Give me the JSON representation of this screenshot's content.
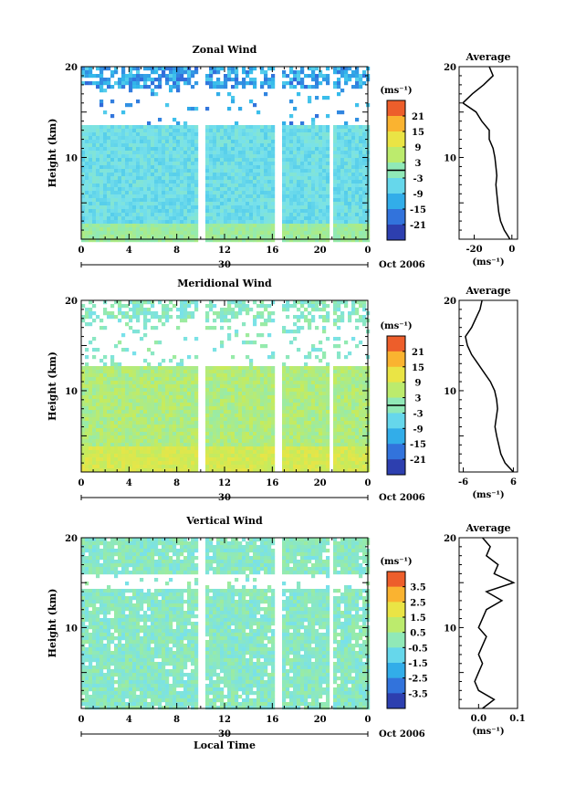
{
  "figure": {
    "date_label": "Oct 2006",
    "x_title": "Local Time",
    "y_title": "Height (km)",
    "unit_label": "(ms⁻¹)"
  },
  "chart_data": [
    {
      "type": "heatmap",
      "title": "Zonal Wind",
      "ylabel": "Height (km)",
      "x_ticks": [
        "0",
        "4",
        "8",
        "12",
        "16",
        "20",
        "0"
      ],
      "x_range_hours": [
        0,
        24
      ],
      "date_tick": "30",
      "y_ticks": [
        10,
        20
      ],
      "ylim": [
        1,
        20
      ],
      "data_gaps_hours": [
        [
          9.6,
          10.2
        ],
        [
          16.2,
          16.7
        ],
        [
          20.6,
          21.1
        ]
      ],
      "colorbar": {
        "label": "(ms⁻¹)",
        "ticks": [
          "21",
          "15",
          "9",
          "3",
          "-3",
          "-9",
          "-15",
          "-21"
        ],
        "range": [
          -24,
          24
        ],
        "contour_value": 0
      },
      "profile": {
        "title": "Average",
        "x_ticks": [
          "-20",
          "0"
        ],
        "xlim": [
          -28,
          3
        ],
        "xlabel": "(ms⁻¹)",
        "heights_km": [
          1,
          2,
          3,
          4,
          5,
          6,
          7,
          8,
          9,
          10,
          11,
          12,
          13,
          14,
          15,
          16,
          17,
          18,
          19,
          20
        ],
        "values": [
          -1,
          -4,
          -6,
          -7,
          -7.5,
          -8,
          -8.5,
          -8,
          -8.5,
          -9,
          -10,
          -12,
          -12,
          -16,
          -19,
          -26,
          -21,
          -15,
          -10,
          -12
        ]
      }
    },
    {
      "type": "heatmap",
      "title": "Meridional Wind",
      "ylabel": "Height (km)",
      "x_ticks": [
        "0",
        "4",
        "8",
        "12",
        "16",
        "20",
        "0"
      ],
      "x_range_hours": [
        0,
        24
      ],
      "date_tick": "30",
      "y_ticks": [
        10,
        20
      ],
      "ylim": [
        1,
        20
      ],
      "data_gaps_hours": [
        [
          9.6,
          10.2
        ],
        [
          16.2,
          16.7
        ],
        [
          20.6,
          21.1
        ]
      ],
      "colorbar": {
        "label": "(ms⁻¹)",
        "ticks": [
          "21",
          "15",
          "9",
          "3",
          "-3",
          "-9",
          "-15",
          "-21"
        ],
        "range": [
          -24,
          24
        ],
        "contour_value": 0
      },
      "profile": {
        "title": "Average",
        "x_ticks": [
          "-6",
          "6"
        ],
        "xlim": [
          -7,
          7
        ],
        "xlabel": "(ms⁻¹)",
        "heights_km": [
          1,
          2,
          3,
          4,
          5,
          6,
          7,
          8,
          9,
          10,
          11,
          12,
          13,
          14,
          15,
          16,
          17,
          18,
          19,
          20
        ],
        "values": [
          6,
          4,
          3,
          2.5,
          2,
          1.6,
          1.9,
          2.2,
          2,
          1.5,
          0.5,
          -1,
          -2.5,
          -4,
          -5,
          -5.5,
          -4,
          -3,
          -2,
          -1.5
        ]
      }
    },
    {
      "type": "heatmap",
      "title": "Vertical Wind",
      "xlabel": "Local Time",
      "ylabel": "Height (km)",
      "x_ticks": [
        "0",
        "4",
        "8",
        "12",
        "16",
        "20",
        "0"
      ],
      "x_range_hours": [
        0,
        24
      ],
      "date_tick": "30",
      "y_ticks": [
        10,
        20
      ],
      "ylim": [
        1,
        20
      ],
      "data_gaps_hours": [
        [
          9.6,
          10.2
        ],
        [
          16.2,
          16.7
        ],
        [
          20.6,
          21.1
        ]
      ],
      "colorbar": {
        "label": "(ms⁻¹)",
        "ticks": [
          "3.5",
          "2.5",
          "1.5",
          "0.5",
          "-0.5",
          "-1.5",
          "-2.5",
          "-3.5"
        ],
        "range": [
          -4,
          4
        ]
      },
      "profile": {
        "title": "Average",
        "x_ticks": [
          "0.0",
          "0.1"
        ],
        "xlim": [
          -0.05,
          0.1
        ],
        "xlabel": "(ms⁻¹)",
        "heights_km": [
          1,
          2,
          3,
          4,
          5,
          6,
          7,
          8,
          9,
          10,
          11,
          12,
          13,
          14,
          15,
          16,
          17,
          18,
          19,
          20
        ],
        "values": [
          0.01,
          0.04,
          0,
          -0.01,
          0,
          0.01,
          0,
          0.01,
          0.02,
          0,
          0.01,
          0.02,
          0.06,
          0.02,
          0.09,
          0.04,
          0.05,
          0.02,
          0.03,
          0.01
        ]
      }
    }
  ]
}
